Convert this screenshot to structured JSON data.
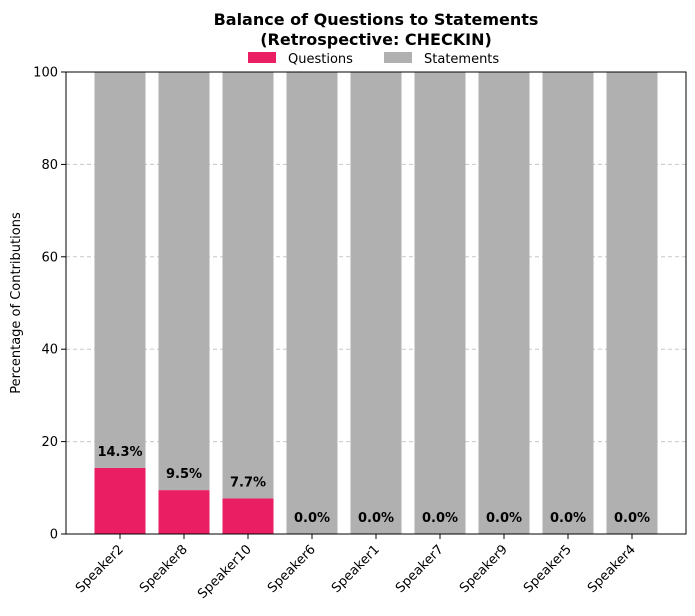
{
  "chart_data": {
    "type": "bar",
    "stacked": true,
    "title_lines": [
      "Balance of Questions to Statements",
      "(Retrospective: CHECKIN)"
    ],
    "xlabel": "",
    "ylabel": "Percentage of Contributions",
    "ylim": [
      0,
      100
    ],
    "yticks": [
      "0",
      "20",
      "40",
      "60",
      "80",
      "100"
    ],
    "grid": "y-dashed",
    "legend_position": "top-center",
    "categories": [
      "Speaker2",
      "Speaker8",
      "Speaker10",
      "Speaker6",
      "Speaker1",
      "Speaker7",
      "Speaker9",
      "Speaker5",
      "Speaker4"
    ],
    "series": [
      {
        "name": "Questions",
        "color": "#e91e63",
        "values": [
          14.3,
          9.5,
          7.7,
          0.0,
          0.0,
          0.0,
          0.0,
          0.0,
          0.0
        ]
      },
      {
        "name": "Statements",
        "color": "#b0b0b0",
        "values": [
          85.7,
          90.5,
          92.3,
          100.0,
          100.0,
          100.0,
          100.0,
          100.0,
          100.0
        ]
      }
    ],
    "data_labels": [
      "14.3%",
      "9.5%",
      "7.7%",
      "0.0%",
      "0.0%",
      "0.0%",
      "0.0%",
      "0.0%",
      "0.0%"
    ]
  }
}
